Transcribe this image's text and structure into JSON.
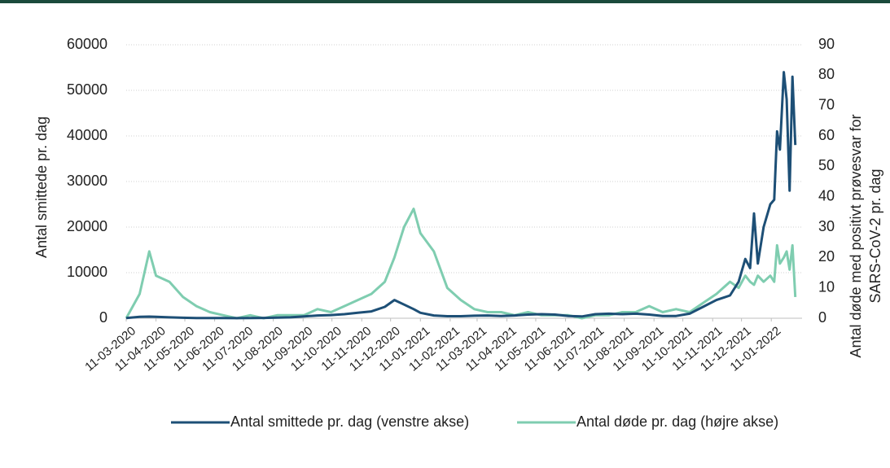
{
  "chart_data": {
    "type": "line",
    "y_label": "Antal smittede pr. dag",
    "y2_label": [
      "Antal døde med positivt prøvesvar for",
      "SARS-CoV-2  pr. dag"
    ],
    "x": [
      "2020-03-11",
      "2020-03-25",
      "2020-04-04",
      "2020-04-11",
      "2020-04-25",
      "2020-05-09",
      "2020-05-23",
      "2020-06-06",
      "2020-06-20",
      "2020-07-04",
      "2020-07-18",
      "2020-08-01",
      "2020-08-15",
      "2020-08-29",
      "2020-09-12",
      "2020-09-26",
      "2020-10-10",
      "2020-10-24",
      "2020-11-07",
      "2020-11-21",
      "2020-12-05",
      "2020-12-15",
      "2020-12-25",
      "2021-01-04",
      "2021-01-11",
      "2021-01-25",
      "2021-02-08",
      "2021-02-22",
      "2021-03-08",
      "2021-03-22",
      "2021-04-05",
      "2021-04-19",
      "2021-05-03",
      "2021-05-17",
      "2021-05-31",
      "2021-06-14",
      "2021-06-28",
      "2021-07-12",
      "2021-07-26",
      "2021-08-09",
      "2021-08-23",
      "2021-09-06",
      "2021-09-20",
      "2021-10-04",
      "2021-10-18",
      "2021-11-01",
      "2021-11-15",
      "2021-11-29",
      "2021-12-08",
      "2021-12-15",
      "2021-12-20",
      "2021-12-24",
      "2021-12-28",
      "2022-01-03",
      "2022-01-10",
      "2022-01-14",
      "2022-01-17",
      "2022-01-20",
      "2022-01-24",
      "2022-01-27",
      "2022-01-30",
      "2022-02-02",
      "2022-02-05"
    ],
    "xlim": [
      "2020-03-11",
      "2022-02-12"
    ],
    "xticks": [
      {
        "value": "2020-03-11",
        "label": "11-03-2020"
      },
      {
        "value": "2020-04-11",
        "label": "11-04-2020"
      },
      {
        "value": "2020-05-11",
        "label": "11-05-2020"
      },
      {
        "value": "2020-06-11",
        "label": "11-06-2020"
      },
      {
        "value": "2020-07-11",
        "label": "11-07-2020"
      },
      {
        "value": "2020-08-11",
        "label": "11-08-2020"
      },
      {
        "value": "2020-09-11",
        "label": "11-09-2020"
      },
      {
        "value": "2020-10-11",
        "label": "11-10-2020"
      },
      {
        "value": "2020-11-11",
        "label": "11-11-2020"
      },
      {
        "value": "2020-12-11",
        "label": "11-12-2020"
      },
      {
        "value": "2021-01-11",
        "label": "11-01-2021"
      },
      {
        "value": "2021-02-11",
        "label": "11-02-2021"
      },
      {
        "value": "2021-03-11",
        "label": "11-03-2021"
      },
      {
        "value": "2021-04-11",
        "label": "11-04-2021"
      },
      {
        "value": "2021-05-11",
        "label": "11-05-2021"
      },
      {
        "value": "2021-06-11",
        "label": "11-06-2021"
      },
      {
        "value": "2021-07-11",
        "label": "11-07-2021"
      },
      {
        "value": "2021-08-11",
        "label": "11-08-2021"
      },
      {
        "value": "2021-09-11",
        "label": "11-09-2021"
      },
      {
        "value": "2021-10-11",
        "label": "11-10-2021"
      },
      {
        "value": "2021-11-11",
        "label": "11-11-2021"
      },
      {
        "value": "2021-12-11",
        "label": "11-12-2021"
      },
      {
        "value": "2022-01-11",
        "label": "11-01-2022"
      }
    ],
    "ylim": [
      0,
      60000
    ],
    "yticks": [
      0,
      10000,
      20000,
      30000,
      40000,
      50000,
      60000
    ],
    "y2lim": [
      0,
      90
    ],
    "y2ticks": [
      0,
      10,
      20,
      30,
      40,
      50,
      60,
      70,
      80,
      90
    ],
    "grid": true,
    "legend": "bottom",
    "series": [
      {
        "name": "Antal  smittede pr. dag (venstre akse)",
        "color": "#1d4f76",
        "values": [
          50,
          300,
          350,
          300,
          200,
          100,
          50,
          40,
          30,
          20,
          30,
          80,
          150,
          200,
          400,
          600,
          700,
          900,
          1200,
          1500,
          2500,
          4000,
          3000,
          2000,
          1200,
          600,
          450,
          450,
          550,
          600,
          500,
          600,
          800,
          900,
          800,
          500,
          400,
          900,
          1000,
          900,
          1000,
          800,
          500,
          500,
          1000,
          2500,
          4000,
          5000,
          8000,
          13000,
          11000,
          23000,
          12000,
          20000,
          25000,
          26000,
          41000,
          37000,
          54000,
          48000,
          28000,
          53000,
          38000
        ]
      },
      {
        "name": "Antal døde pr. dag (højre akse)",
        "color": "#7fcdb0",
        "axis": "y2",
        "values": [
          0,
          8,
          22,
          14,
          12,
          7,
          4,
          2,
          1,
          0,
          1,
          0,
          1,
          1,
          1,
          3,
          2,
          4,
          6,
          8,
          12,
          20,
          30,
          36,
          28,
          22,
          10,
          6,
          3,
          2,
          2,
          1,
          2,
          1,
          1,
          1,
          0,
          1,
          1,
          2,
          2,
          4,
          2,
          3,
          2,
          5,
          8,
          12,
          10,
          14,
          12,
          11,
          14,
          12,
          14,
          12,
          24,
          18,
          20,
          22,
          16,
          24,
          7
        ]
      }
    ]
  }
}
